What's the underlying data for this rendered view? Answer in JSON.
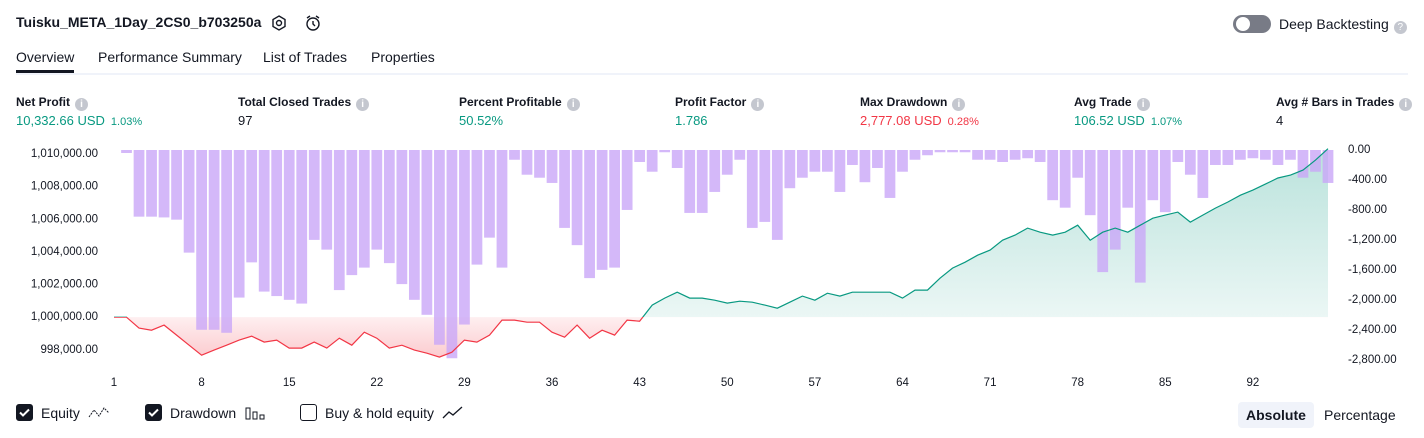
{
  "header": {
    "title": "Tuisku_META_1Day_2CS0_b703250a",
    "deep_backtesting": "Deep Backtesting"
  },
  "tabs": [
    "Overview",
    "Performance Summary",
    "List of Trades",
    "Properties"
  ],
  "metrics": [
    {
      "label": "Net Profit",
      "value": "10,332.66 USD",
      "percent": "1.03%",
      "color": "#089981"
    },
    {
      "label": "Total Closed Trades",
      "value": "97",
      "color": "#131722"
    },
    {
      "label": "Percent Profitable",
      "value": "50.52%",
      "color": "#089981"
    },
    {
      "label": "Profit Factor",
      "value": "1.786",
      "color": "#089981"
    },
    {
      "label": "Max Drawdown",
      "value": "2,777.08 USD",
      "percent": "0.28%",
      "color": "#f23645"
    },
    {
      "label": "Avg Trade",
      "value": "106.52 USD",
      "percent": "1.07%",
      "color": "#089981"
    },
    {
      "label": "Avg # Bars in Trades",
      "value": "4",
      "color": "#131722"
    }
  ],
  "chart_data": {
    "type": "equity-drawdown",
    "x": [
      1,
      2,
      3,
      4,
      5,
      6,
      7,
      8,
      9,
      10,
      11,
      12,
      13,
      14,
      15,
      16,
      17,
      18,
      19,
      20,
      21,
      22,
      23,
      24,
      25,
      26,
      27,
      28,
      29,
      30,
      31,
      32,
      33,
      34,
      35,
      36,
      37,
      38,
      39,
      40,
      41,
      42,
      43,
      44,
      45,
      46,
      47,
      48,
      49,
      50,
      51,
      52,
      53,
      54,
      55,
      56,
      57,
      58,
      59,
      60,
      61,
      62,
      63,
      64,
      65,
      66,
      67,
      68,
      69,
      70,
      71,
      72,
      73,
      74,
      75,
      76,
      77,
      78,
      79,
      80,
      81,
      82,
      83,
      84,
      85,
      86,
      87,
      88,
      89,
      90,
      91,
      92,
      93,
      94,
      95,
      96,
      97,
      98
    ],
    "xlim": [
      1,
      98
    ],
    "xticks": [
      1,
      8,
      15,
      22,
      29,
      36,
      43,
      50,
      57,
      64,
      71,
      78,
      85,
      92
    ],
    "ylim": [
      997250,
      1010250
    ],
    "yticks": [
      {
        "value": 998000,
        "label": "998,000.00"
      },
      {
        "value": 1000000,
        "label": "1,000,000.00"
      },
      {
        "value": 1002000,
        "label": "1,002,000.00"
      },
      {
        "value": 1004000,
        "label": "1,004,000.00"
      },
      {
        "value": 1006000,
        "label": "1,006,000.00"
      },
      {
        "value": 1008000,
        "label": "1,008,000.00"
      },
      {
        "value": 1010000,
        "label": "1,010,000.00"
      }
    ],
    "y2lim": [
      -2830,
      0
    ],
    "y2ticks": [
      {
        "value": 0,
        "label": "0.00"
      },
      {
        "value": -400,
        "label": "-400.00"
      },
      {
        "value": -800,
        "label": "-800.00"
      },
      {
        "value": -1200,
        "label": "-1,200.00"
      },
      {
        "value": -1600,
        "label": "-1,600.00"
      },
      {
        "value": -2000,
        "label": "-2,000.00"
      },
      {
        "value": -2400,
        "label": "-2,400.00"
      },
      {
        "value": -2800,
        "label": "-2,800.00"
      }
    ],
    "series": [
      {
        "name": "Equity",
        "type": "line",
        "axis": "y",
        "checked": true,
        "color": "#089981",
        "color_below": "#f23645",
        "values": [
          1000000,
          1000000,
          999330,
          999200,
          999510,
          998900,
          998280,
          997670,
          997980,
          998280,
          998590,
          998830,
          998470,
          998590,
          998100,
          998100,
          998470,
          998100,
          998710,
          998280,
          999080,
          998710,
          998100,
          998280,
          997980,
          997790,
          997550,
          997850,
          998590,
          998470,
          998900,
          999820,
          999820,
          999690,
          999690,
          999080,
          998770,
          999510,
          998710,
          999200,
          998900,
          999820,
          999750,
          1000740,
          1001170,
          1001530,
          1001170,
          1001170,
          1001040,
          1000860,
          1000980,
          1000920,
          1000740,
          1000550,
          1000920,
          1001290,
          1001040,
          1001470,
          1001290,
          1001530,
          1001530,
          1001530,
          1001530,
          1001170,
          1001660,
          1001660,
          1002390,
          1003010,
          1003370,
          1003800,
          1004110,
          1004720,
          1005030,
          1005460,
          1005210,
          1005030,
          1005210,
          1005640,
          1004720,
          1005210,
          1005460,
          1005210,
          1005640,
          1006070,
          1006260,
          1006440,
          1005830,
          1006260,
          1006690,
          1007060,
          1007480,
          1007790,
          1008160,
          1008530,
          1008710,
          1009020,
          1009630,
          1010330
        ]
      },
      {
        "name": "Drawdown",
        "type": "bar",
        "axis": "y2",
        "checked": true,
        "color": "#c9a6f8",
        "values": [
          0,
          -40,
          -890,
          -890,
          -900,
          -930,
          -1370,
          -2400,
          -2400,
          -2440,
          -1970,
          -1500,
          -1890,
          -1950,
          -2000,
          -2050,
          -1200,
          -1330,
          -1870,
          -1670,
          -1570,
          -1330,
          -1510,
          -1790,
          -2000,
          -2200,
          -2600,
          -2780,
          -2330,
          -1530,
          -1170,
          -1570,
          -130,
          -330,
          -370,
          -440,
          -1040,
          -1270,
          -1710,
          -1600,
          -1570,
          -800,
          -160,
          -290,
          -30,
          -240,
          -840,
          -840,
          -560,
          -330,
          -130,
          -1040,
          -960,
          -1200,
          -510,
          -370,
          -290,
          -290,
          -560,
          -200,
          -430,
          -240,
          -640,
          -290,
          -130,
          -70,
          -30,
          -30,
          -30,
          -130,
          -130,
          -160,
          -130,
          -110,
          -160,
          -670,
          -770,
          -370,
          -870,
          -1630,
          -1330,
          -770,
          -1770,
          -670,
          -830,
          -160,
          -330,
          -640,
          -200,
          -200,
          -130,
          -110,
          -130,
          -200,
          -130,
          -370,
          -290,
          -440
        ]
      }
    ],
    "buy_hold": {
      "name": "Buy & hold equity",
      "checked": false
    },
    "modes": [
      "Absolute",
      "Percentage"
    ],
    "active_mode": 0
  }
}
